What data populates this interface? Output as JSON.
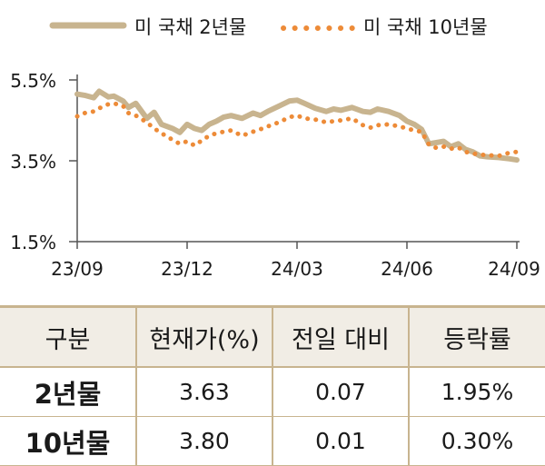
{
  "chart_data": {
    "type": "line",
    "title": "",
    "xlabel": "",
    "ylabel": "",
    "ylim": [
      1.5,
      5.5
    ],
    "y_ticks": [
      "5.5%",
      "3.5%",
      "1.5%"
    ],
    "x_ticks": [
      "23/09",
      "23/12",
      "24/03",
      "24/06",
      "24/09"
    ],
    "x_range": [
      "2023-09",
      "2024-09"
    ],
    "legend_position": "top",
    "grid": false,
    "series": [
      {
        "name": "미 국채 2년물",
        "style": "solid",
        "color": "#c8b48f",
        "x": [
          0,
          0.2,
          0.45,
          0.6,
          0.85,
          1.0,
          1.25,
          1.4,
          1.6,
          1.9,
          2.1,
          2.3,
          2.6,
          2.8,
          3.0,
          3.2,
          3.4,
          3.6,
          3.8,
          4.0,
          4.2,
          4.5,
          4.8,
          5.0,
          5.2,
          5.5,
          5.8,
          6.0,
          6.2,
          6.5,
          6.8,
          7.0,
          7.2,
          7.5,
          7.8,
          8.0,
          8.2,
          8.5,
          8.8,
          9.0,
          9.2,
          9.4,
          9.6,
          9.8,
          10.0,
          10.2,
          10.4,
          10.6,
          10.8,
          11.0,
          11.2,
          11.5,
          11.8,
          12.0
        ],
        "y": [
          5.15,
          5.12,
          5.06,
          5.22,
          5.08,
          5.1,
          4.98,
          4.82,
          4.92,
          4.55,
          4.7,
          4.4,
          4.3,
          4.2,
          4.4,
          4.3,
          4.25,
          4.4,
          4.48,
          4.58,
          4.62,
          4.55,
          4.68,
          4.62,
          4.72,
          4.85,
          4.98,
          5.0,
          4.92,
          4.8,
          4.72,
          4.78,
          4.75,
          4.82,
          4.72,
          4.7,
          4.78,
          4.72,
          4.62,
          4.48,
          4.4,
          4.28,
          3.92,
          3.95,
          3.98,
          3.85,
          3.92,
          3.78,
          3.72,
          3.62,
          3.6,
          3.58,
          3.55,
          3.52
        ]
      },
      {
        "name": "미 국채 10년물",
        "style": "dotted",
        "color": "#ed8b38",
        "x": [
          0,
          0.2,
          0.45,
          0.6,
          0.85,
          1.0,
          1.25,
          1.4,
          1.6,
          1.9,
          2.1,
          2.3,
          2.6,
          2.8,
          3.0,
          3.2,
          3.4,
          3.6,
          3.8,
          4.0,
          4.2,
          4.5,
          4.8,
          5.0,
          5.2,
          5.5,
          5.8,
          6.0,
          6.2,
          6.5,
          6.8,
          7.0,
          7.2,
          7.5,
          7.8,
          8.0,
          8.2,
          8.5,
          8.8,
          9.0,
          9.2,
          9.4,
          9.6,
          9.8,
          10.0,
          10.2,
          10.4,
          10.6,
          10.8,
          11.0,
          11.2,
          11.5,
          11.8,
          12.0
        ],
        "y": [
          4.6,
          4.68,
          4.72,
          4.8,
          4.9,
          4.92,
          4.86,
          4.68,
          4.62,
          4.45,
          4.3,
          4.18,
          4.02,
          3.92,
          3.98,
          3.88,
          4.0,
          4.12,
          4.18,
          4.22,
          4.25,
          4.12,
          4.22,
          4.28,
          4.35,
          4.45,
          4.58,
          4.62,
          4.55,
          4.52,
          4.45,
          4.48,
          4.5,
          4.55,
          4.38,
          4.32,
          4.38,
          4.4,
          4.35,
          4.3,
          4.25,
          4.22,
          3.9,
          3.82,
          3.85,
          3.8,
          3.83,
          3.72,
          3.68,
          3.65,
          3.64,
          3.62,
          3.7,
          3.72
        ]
      }
    ]
  },
  "table": {
    "headers": [
      "구분",
      "현재가(%)",
      "전일 대비",
      "등락률"
    ],
    "rows": [
      [
        "2년물",
        "3.63",
        "0.07",
        "1.95%"
      ],
      [
        "10년물",
        "3.80",
        "0.01",
        "0.30%"
      ]
    ]
  }
}
